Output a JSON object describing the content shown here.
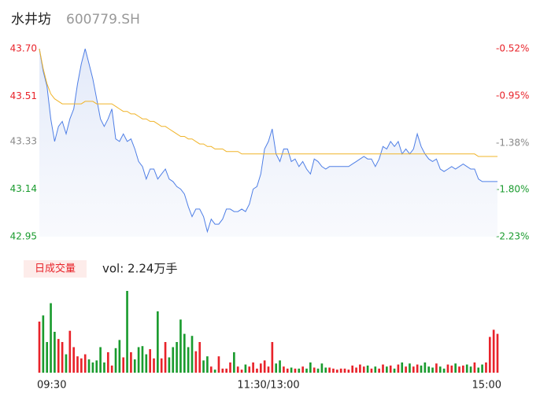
{
  "title": "水井坊",
  "code": "600779.SH",
  "chart_data": [
    {
      "type": "line",
      "x": [
        0,
        2,
        4,
        6,
        8,
        10,
        12,
        14,
        16,
        18,
        20,
        22,
        24,
        26,
        28,
        30,
        32,
        34,
        36,
        38,
        40,
        42,
        44,
        46,
        48,
        50,
        52,
        54,
        56,
        58,
        60,
        62,
        64,
        66,
        68,
        70,
        72,
        74,
        76,
        78,
        80,
        82,
        84,
        86,
        88,
        90,
        92,
        94,
        96,
        98,
        100,
        102,
        104,
        106,
        108,
        110,
        112,
        114,
        116,
        118,
        120,
        122,
        124,
        126,
        128,
        130,
        132,
        134,
        136,
        138,
        140,
        142,
        144,
        146,
        148,
        150,
        152,
        154,
        156,
        158,
        160,
        162,
        164,
        166,
        168,
        170,
        172,
        174,
        176,
        178,
        180,
        182,
        184,
        186,
        188,
        190,
        192,
        194,
        196,
        198,
        200,
        202,
        204,
        206,
        208,
        210,
        212,
        214,
        216,
        218,
        220,
        222,
        224,
        226,
        228,
        230,
        232,
        234,
        236,
        238,
        240
      ],
      "series": [
        {
          "color": "#4f7fe6",
          "values": [
            43.7,
            43.61,
            43.55,
            43.42,
            43.33,
            43.39,
            43.41,
            43.36,
            43.42,
            43.46,
            43.56,
            43.64,
            43.7,
            43.64,
            43.58,
            43.5,
            43.42,
            43.39,
            43.42,
            43.46,
            43.34,
            43.33,
            43.36,
            43.33,
            43.34,
            43.3,
            43.25,
            43.23,
            43.18,
            43.22,
            43.22,
            43.18,
            43.2,
            43.22,
            43.18,
            43.17,
            43.15,
            43.14,
            43.12,
            43.07,
            43.03,
            43.06,
            43.06,
            43.03,
            42.97,
            43.02,
            43.0,
            43.0,
            43.02,
            43.06,
            43.06,
            43.05,
            43.05,
            43.06,
            43.05,
            43.08,
            43.14,
            43.15,
            43.2,
            43.3,
            43.33,
            43.38,
            43.28,
            43.25,
            43.3,
            43.3,
            43.25,
            43.26,
            43.23,
            43.25,
            43.22,
            43.2,
            43.26,
            43.25,
            43.23,
            43.22,
            43.23,
            43.23,
            43.23,
            43.23,
            43.23,
            43.23,
            43.24,
            43.25,
            43.26,
            43.27,
            43.26,
            43.26,
            43.23,
            43.26,
            43.31,
            43.3,
            43.33,
            43.31,
            43.33,
            43.28,
            43.3,
            43.28,
            43.3,
            43.36,
            43.31,
            43.28,
            43.26,
            43.25,
            43.26,
            43.22,
            43.21,
            43.22,
            43.23,
            43.22,
            43.23,
            43.24,
            43.23,
            43.22,
            43.22,
            43.18,
            43.17,
            43.17,
            43.17,
            43.17,
            43.17
          ]
        },
        {
          "color": "#f0b429",
          "values": [
            43.7,
            43.62,
            43.56,
            43.52,
            43.5,
            43.49,
            43.48,
            43.48,
            43.48,
            43.48,
            43.48,
            43.48,
            43.49,
            43.49,
            43.49,
            43.48,
            43.48,
            43.48,
            43.48,
            43.48,
            43.47,
            43.46,
            43.45,
            43.45,
            43.44,
            43.44,
            43.43,
            43.42,
            43.42,
            43.41,
            43.41,
            43.4,
            43.39,
            43.39,
            43.38,
            43.37,
            43.36,
            43.35,
            43.35,
            43.34,
            43.34,
            43.33,
            43.32,
            43.32,
            43.31,
            43.31,
            43.3,
            43.3,
            43.3,
            43.29,
            43.29,
            43.29,
            43.29,
            43.28,
            43.28,
            43.28,
            43.28,
            43.28,
            43.28,
            43.28,
            43.28,
            43.28,
            43.28,
            43.28,
            43.28,
            43.28,
            43.28,
            43.28,
            43.28,
            43.28,
            43.28,
            43.28,
            43.28,
            43.28,
            43.28,
            43.28,
            43.28,
            43.28,
            43.28,
            43.28,
            43.28,
            43.28,
            43.28,
            43.28,
            43.28,
            43.28,
            43.28,
            43.28,
            43.28,
            43.28,
            43.28,
            43.28,
            43.28,
            43.28,
            43.28,
            43.28,
            43.28,
            43.28,
            43.28,
            43.28,
            43.28,
            43.28,
            43.28,
            43.28,
            43.28,
            43.28,
            43.28,
            43.28,
            43.28,
            43.28,
            43.28,
            43.28,
            43.28,
            43.28,
            43.28,
            43.27,
            43.27,
            43.27,
            43.27,
            43.27,
            43.27
          ]
        }
      ],
      "xlim": [
        0,
        240
      ],
      "ylim": [
        42.95,
        43.7
      ],
      "yticks": [
        {
          "value": 43.7,
          "label": "43.70"
        },
        43.51,
        43.33,
        43.14,
        42.95
      ],
      "ytick_colors": [
        "#e8232a",
        "#e8232a",
        "#888888",
        "#1a9b2e",
        "#1a9b2e"
      ],
      "y2lim": [
        -2.23,
        -0.52
      ],
      "y2ticks": [
        {
          "value": -0.52,
          "label": "-0.52%"
        },
        {
          "value": -0.95,
          "label": "-0.95%"
        },
        {
          "value": -1.38,
          "label": "-1.38%"
        },
        {
          "value": -1.8,
          "label": "-1.80%"
        },
        {
          "value": -2.23,
          "label": "-2.23%"
        }
      ],
      "y2tick_colors": [
        "#e8232a",
        "#e8232a",
        "#888888",
        "#1a9b2e",
        "#1a9b2e"
      ]
    },
    {
      "type": "bar",
      "title": "日成交量",
      "subtitle": "vol: 2.24万手",
      "x": [
        0,
        2,
        4,
        6,
        8,
        10,
        12,
        14,
        16,
        18,
        20,
        22,
        24,
        26,
        28,
        30,
        32,
        34,
        36,
        38,
        40,
        42,
        44,
        46,
        48,
        50,
        52,
        54,
        56,
        58,
        60,
        62,
        64,
        66,
        68,
        70,
        72,
        74,
        76,
        78,
        80,
        82,
        84,
        86,
        88,
        90,
        92,
        94,
        96,
        98,
        100,
        102,
        104,
        106,
        108,
        110,
        112,
        114,
        116,
        118,
        120,
        122,
        124,
        126,
        128,
        130,
        132,
        134,
        136,
        138,
        140,
        142,
        144,
        146,
        148,
        150,
        152,
        154,
        156,
        158,
        160,
        162,
        164,
        166,
        168,
        170,
        172,
        174,
        176,
        178,
        180,
        182,
        184,
        186,
        188,
        190,
        192,
        194,
        196,
        198,
        200,
        202,
        204,
        206,
        208,
        210,
        212,
        214,
        216,
        218,
        220,
        222,
        224,
        226,
        228,
        230,
        232,
        234,
        236,
        238,
        240
      ],
      "values": [
        500,
        560,
        300,
        680,
        400,
        330,
        300,
        180,
        410,
        250,
        160,
        140,
        180,
        130,
        100,
        120,
        250,
        100,
        200,
        70,
        240,
        320,
        150,
        800,
        200,
        130,
        250,
        260,
        180,
        230,
        140,
        600,
        140,
        300,
        150,
        250,
        300,
        520,
        380,
        250,
        360,
        210,
        300,
        120,
        160,
        60,
        30,
        160,
        40,
        40,
        100,
        200,
        60,
        30,
        80,
        60,
        100,
        40,
        90,
        120,
        60,
        300,
        90,
        120,
        60,
        40,
        50,
        40,
        40,
        60,
        40,
        100,
        50,
        40,
        90,
        50,
        50,
        40,
        30,
        40,
        40,
        30,
        70,
        50,
        80,
        60,
        70,
        40,
        60,
        40,
        80,
        60,
        70,
        40,
        80,
        100,
        60,
        90,
        60,
        80,
        70,
        100,
        60,
        50,
        90,
        60,
        40,
        80,
        70,
        90,
        60,
        70,
        80,
        60,
        100,
        50,
        80,
        100,
        350,
        420,
        380
      ],
      "up_color": "#e8232a",
      "down_color": "#1a9b2e",
      "xlim": [
        0,
        240
      ],
      "xticks": [
        {
          "value": 0,
          "label": "09:30"
        },
        {
          "value": 120,
          "label": "11:30/13:00"
        },
        {
          "value": 240,
          "label": "15:00"
        }
      ]
    }
  ]
}
